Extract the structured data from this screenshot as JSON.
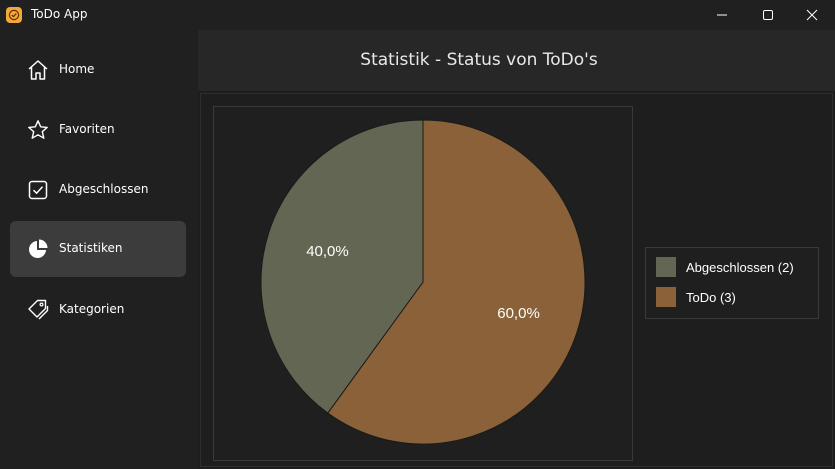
{
  "window": {
    "title": "ToDo App"
  },
  "sidebar": {
    "items": [
      {
        "label": "Home",
        "icon": "home-icon",
        "active": false
      },
      {
        "label": "Favoriten",
        "icon": "star-icon",
        "active": false
      },
      {
        "label": "Abgeschlossen",
        "icon": "checkbox-icon",
        "active": false
      },
      {
        "label": "Statistiken",
        "icon": "pie-chart-icon",
        "active": true
      },
      {
        "label": "Kategorien",
        "icon": "tags-icon",
        "active": false
      }
    ]
  },
  "page": {
    "title": "Statistik - Status von ToDo's"
  },
  "chart_data": {
    "type": "pie",
    "slices": [
      {
        "name": "Abgeschlossen (2)",
        "value": 2,
        "label": "40,0%",
        "color": "#636653"
      },
      {
        "name": "ToDo (3)",
        "value": 3,
        "label": "60,0%",
        "color": "#8a6138"
      }
    ],
    "legend_position": "right"
  },
  "colors": {
    "background": "#202020",
    "header": "#272727",
    "active_nav": "#3c3c3c",
    "app_icon": "#f5a83a"
  }
}
